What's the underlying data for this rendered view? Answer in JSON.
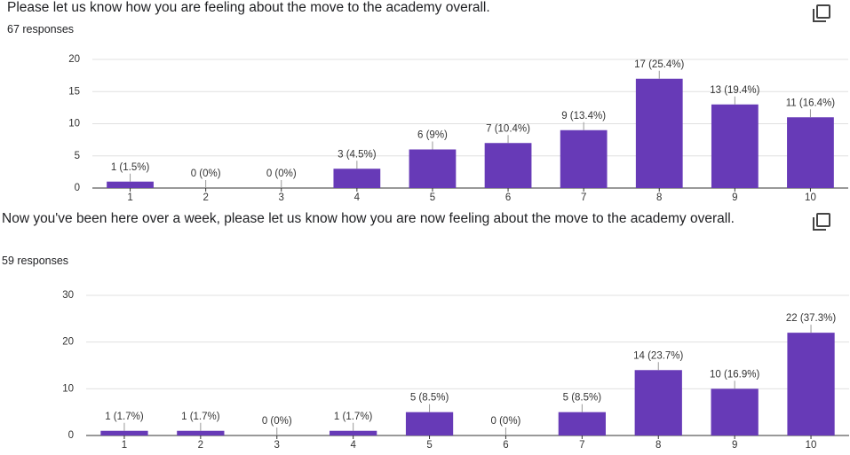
{
  "chart_data": [
    {
      "type": "bar",
      "title": "Please let us know how you are feeling about the move to the academy overall.",
      "subtitle": "67 responses",
      "categories": [
        "1",
        "2",
        "3",
        "4",
        "5",
        "6",
        "7",
        "8",
        "9",
        "10"
      ],
      "values": [
        1,
        0,
        0,
        3,
        6,
        7,
        9,
        17,
        13,
        11
      ],
      "value_labels": [
        "1 (1.5%)",
        "0 (0%)",
        "0 (0%)",
        "3 (4.5%)",
        "6 (9%)",
        "7 (10.4%)",
        "9 (13.4%)",
        "17 (25.4%)",
        "13 (19.4%)",
        "11 (16.4%)"
      ],
      "color": "#673ab7",
      "ylim": [
        0,
        20
      ],
      "yticks": [
        0,
        5,
        10,
        15,
        20
      ],
      "grid": true
    },
    {
      "type": "bar",
      "title": "Now you've been here over a week, please let us know how you are now feeling about the move to the academy overall.",
      "subtitle": "59 responses",
      "categories": [
        "1",
        "2",
        "3",
        "4",
        "5",
        "6",
        "7",
        "8",
        "9",
        "10"
      ],
      "values": [
        1,
        1,
        0,
        1,
        5,
        0,
        5,
        14,
        10,
        22
      ],
      "value_labels": [
        "1 (1.7%)",
        "1 (1.7%)",
        "0 (0%)",
        "1 (1.7%)",
        "5 (8.5%)",
        "0 (0%)",
        "5 (8.5%)",
        "14 (23.7%)",
        "10 (16.9%)",
        "22 (37.3%)"
      ],
      "color": "#673ab7",
      "ylim": [
        0,
        30
      ],
      "yticks": [
        0,
        10,
        20,
        30
      ],
      "grid": true
    }
  ]
}
